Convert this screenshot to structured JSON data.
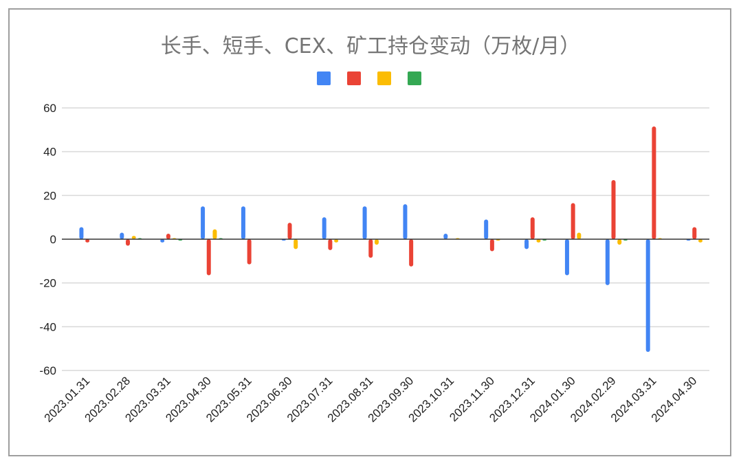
{
  "chart_data": {
    "type": "bar",
    "title": "长手、短手、CEX、矿工持仓变动（万枚/月）",
    "xlabel": "",
    "ylabel": "",
    "ylim": [
      -60,
      60
    ],
    "yticks": [
      60,
      40,
      20,
      0,
      -20,
      -40,
      -60
    ],
    "grid": true,
    "legend": "top",
    "categories": [
      "2023.01.31",
      "2023.02.28",
      "2023.03.31",
      "2023.04.30",
      "2023.05.31",
      "2023.06.30",
      "2023.07.31",
      "2023.08.31",
      "2023.09.30",
      "2023.10.31",
      "2023.11.30",
      "2023.12.31",
      "2024.01.30",
      "2024.02.29",
      "2024.03.31",
      "2024.04.30"
    ],
    "series": [
      {
        "color": "#4285f4",
        "values": [
          5.5,
          3,
          -1.5,
          15,
          15,
          -0.5,
          10,
          15,
          16,
          2.5,
          9,
          -4.5,
          -16.5,
          -21,
          -51.5,
          -0.5
        ]
      },
      {
        "color": "#ea4335",
        "values": [
          -1.5,
          -3,
          2.5,
          -16.5,
          -11.5,
          7.5,
          -5,
          -8.5,
          -12.5,
          0,
          -5.5,
          10,
          16.5,
          27,
          51.5,
          5.5
        ]
      },
      {
        "color": "#fbbc04",
        "values": [
          0,
          1.5,
          0.5,
          4.5,
          0,
          -4.5,
          -1.5,
          -2.5,
          0,
          0.5,
          -0.5,
          -1.5,
          3,
          -2.5,
          0.5,
          -1.5
        ]
      },
      {
        "color": "#34a853",
        "values": [
          0,
          0.5,
          -0.5,
          0.5,
          0,
          0,
          0,
          0,
          0,
          0,
          0,
          -0.5,
          0,
          -0.5,
          0,
          0
        ]
      }
    ]
  }
}
